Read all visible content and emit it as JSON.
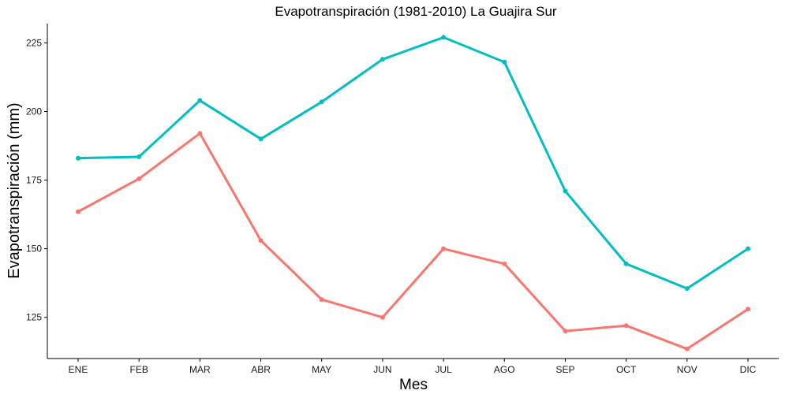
{
  "chart_data": {
    "type": "line",
    "title": "Evapotranspiración (1981-2010)  La Guajira Sur",
    "xlabel": "Mes",
    "ylabel": "Evapotranspiración (mm)",
    "categories": [
      "ENE",
      "FEB",
      "MAR",
      "ABR",
      "MAY",
      "JUN",
      "JUL",
      "AGO",
      "SEP",
      "OCT",
      "NOV",
      "DIC"
    ],
    "yticks": [
      125,
      150,
      175,
      200,
      225
    ],
    "ylim": [
      110,
      232
    ],
    "grid": false,
    "legend": "none",
    "series": [
      {
        "color": "#f8766d",
        "values": [
          163.5,
          175.5,
          192.0,
          153.0,
          131.5,
          125.0,
          150.0,
          144.5,
          120.0,
          122.0,
          113.5,
          128.0
        ]
      },
      {
        "color": "#00bfc4",
        "values": [
          183.0,
          183.5,
          204.0,
          190.0,
          203.5,
          219.0,
          227.0,
          218.0,
          171.0,
          144.5,
          135.5,
          150.0
        ]
      }
    ]
  }
}
